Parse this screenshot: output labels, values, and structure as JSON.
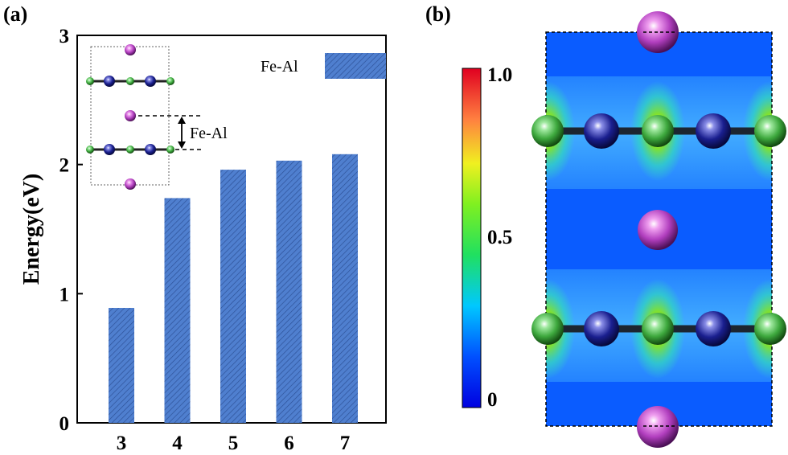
{
  "panel_a_label": "(a)",
  "panel_b_label": "(b)",
  "chart_data": {
    "type": "bar",
    "categories": [
      "3",
      "4",
      "5",
      "6",
      "7"
    ],
    "series": [
      {
        "name": "Fe-Al",
        "values": [
          0.89,
          1.74,
          1.96,
          2.03,
          2.08
        ]
      }
    ],
    "ylabel": "Energy(eV)",
    "xlabel": "",
    "ylim": [
      0,
      3
    ],
    "yticks": [
      "0",
      "1",
      "2",
      "3"
    ],
    "legend": "top-right",
    "grid": false,
    "bar_color": "#4f7fcf",
    "hatch": "diagonal"
  },
  "inset": {
    "annotation": "Fe-Al"
  },
  "colorbar": {
    "ticks": [
      "0",
      "0.5",
      "1.0"
    ],
    "range": [
      0,
      1
    ]
  },
  "colors": {
    "fe_atom": "#1a1f8f",
    "al_atom": "#3da83d",
    "interlayer_atom": "#b23fbf",
    "field_low": "#0066ff",
    "field_high": "#e8f020"
  }
}
